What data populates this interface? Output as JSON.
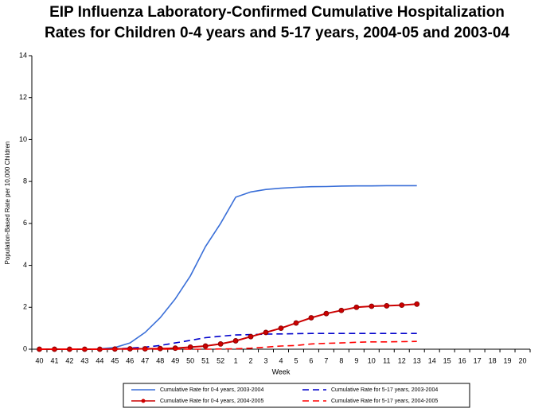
{
  "chart_data": {
    "type": "line",
    "title": [
      "EIP Influenza Laboratory-Confirmed Cumulative Hospitalization",
      "Rates for Children 0-4 years and 5-17 years, 2004-05 and 2003-04"
    ],
    "x_label": "Week",
    "y_label": "Population-Based Rate per 10,000 Children",
    "categories": [
      "40",
      "41",
      "42",
      "43",
      "44",
      "45",
      "46",
      "47",
      "48",
      "49",
      "50",
      "51",
      "52",
      "1",
      "2",
      "3",
      "4",
      "5",
      "6",
      "7",
      "8",
      "9",
      "10",
      "11",
      "12",
      "13",
      "14",
      "15",
      "16",
      "17",
      "18",
      "19",
      "20"
    ],
    "ylim": [
      0,
      14
    ],
    "yticks": [
      0,
      2,
      4,
      6,
      8,
      10,
      12,
      14
    ],
    "grid": false,
    "series": [
      {
        "name": "Cumulative Rate for 0-4 years, 2003-2004",
        "color": "#3a6fd8",
        "dash": false,
        "marker": false,
        "values": [
          0,
          0,
          0,
          0,
          0.02,
          0.08,
          0.3,
          0.8,
          1.5,
          2.4,
          3.5,
          4.9,
          6.0,
          7.25,
          7.5,
          7.62,
          7.68,
          7.72,
          7.75,
          7.76,
          7.78,
          7.79,
          7.79,
          7.8,
          7.8,
          7.8,
          null,
          null,
          null,
          null,
          null,
          null,
          null
        ]
      },
      {
        "name": "Cumulative Rate for 5-17 years, 2003-2004",
        "color": "#0000cc",
        "dash": true,
        "marker": false,
        "values": [
          0,
          0,
          0,
          0,
          0,
          0.02,
          0.05,
          0.1,
          0.18,
          0.3,
          0.42,
          0.55,
          0.62,
          0.68,
          0.7,
          0.72,
          0.73,
          0.74,
          0.75,
          0.75,
          0.75,
          0.75,
          0.75,
          0.75,
          0.75,
          0.75,
          null,
          null,
          null,
          null,
          null,
          null,
          null
        ]
      },
      {
        "name": "Cumulative Rate for 0-4 years, 2004-2005",
        "color": "#cc0000",
        "dash": false,
        "marker": true,
        "values": [
          0,
          0,
          0,
          0,
          0,
          0.01,
          0.02,
          0.02,
          0.03,
          0.05,
          0.1,
          0.15,
          0.25,
          0.4,
          0.6,
          0.8,
          1.0,
          1.25,
          1.5,
          1.7,
          1.85,
          2.0,
          2.05,
          2.07,
          2.1,
          2.15,
          null,
          null,
          null,
          null,
          null,
          null,
          null
        ]
      },
      {
        "name": "Cumulative Rate for 5-17 years, 2004-2005",
        "color": "#ff0000",
        "dash": true,
        "marker": false,
        "values": [
          0,
          0,
          0,
          0,
          0,
          0,
          0,
          0,
          0,
          0,
          0,
          0,
          0.01,
          0.02,
          0.05,
          0.1,
          0.15,
          0.18,
          0.25,
          0.28,
          0.3,
          0.33,
          0.35,
          0.35,
          0.36,
          0.37,
          null,
          null,
          null,
          null,
          null,
          null,
          null
        ]
      }
    ]
  }
}
